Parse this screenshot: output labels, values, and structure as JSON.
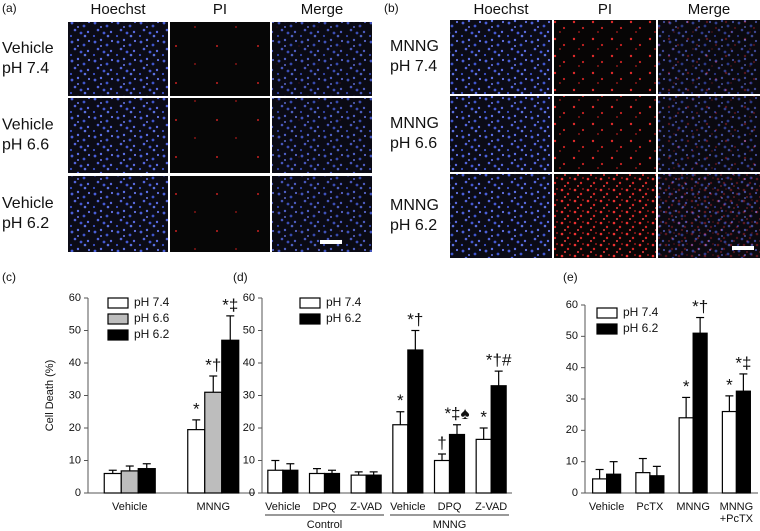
{
  "image_panels": [
    {
      "label": "(a)",
      "columns": [
        "Hoechst",
        "PI",
        "Merge"
      ],
      "rows": [
        {
          "treatment": "Vehicle",
          "ph": "pH 7.4"
        },
        {
          "treatment": "Vehicle",
          "ph": "pH 6.6"
        },
        {
          "treatment": "Vehicle",
          "ph": "pH 6.2"
        }
      ]
    },
    {
      "label": "(b)",
      "columns": [
        "Hoechst",
        "PI",
        "Merge"
      ],
      "rows": [
        {
          "treatment": "MNNG",
          "ph": "pH 7.4"
        },
        {
          "treatment": "MNNG",
          "ph": "pH 6.6"
        },
        {
          "treatment": "MNNG",
          "ph": "pH 6.2"
        }
      ]
    }
  ],
  "chart_data": [
    {
      "type": "bar",
      "label": "(c)",
      "ylabel": "Cell Death (%)",
      "categories": [
        "Vehicle",
        "MNNG"
      ],
      "series": [
        {
          "name": "pH 7.4",
          "color": "#ffffff",
          "values": [
            6,
            19.5
          ],
          "errors": [
            1,
            3
          ],
          "annotations": [
            null,
            "*"
          ]
        },
        {
          "name": "pH 6.6",
          "color": "#bdbdbd",
          "values": [
            6.8,
            31
          ],
          "errors": [
            1.5,
            5
          ],
          "annotations": [
            null,
            "*†"
          ]
        },
        {
          "name": "pH 6.2",
          "color": "#000000",
          "values": [
            7.5,
            47
          ],
          "errors": [
            1.5,
            7.5
          ],
          "annotations": [
            null,
            "*‡"
          ]
        }
      ],
      "ylim": [
        0,
        60
      ],
      "yticks": [
        0,
        10,
        20,
        30,
        40,
        50,
        60
      ]
    },
    {
      "type": "bar",
      "label": "(d)",
      "categories": [
        "Vehicle",
        "DPQ",
        "Z-VAD",
        "Vehicle",
        "DPQ",
        "Z-VAD"
      ],
      "group_labels": [
        "Control",
        "MNNG"
      ],
      "series": [
        {
          "name": "pH 7.4",
          "color": "#ffffff",
          "values": [
            7,
            6,
            5.5,
            21,
            10,
            16.5
          ],
          "errors": [
            3,
            1.5,
            1,
            4,
            2,
            3.5
          ],
          "annotations": [
            null,
            null,
            null,
            "*",
            "†",
            "*"
          ]
        },
        {
          "name": "pH 6.2",
          "color": "#000000",
          "values": [
            7,
            6,
            5.5,
            44,
            18,
            33
          ],
          "errors": [
            2,
            1,
            1,
            6,
            3,
            4.5
          ],
          "annotations": [
            null,
            null,
            null,
            "*†",
            "*‡♠",
            "*†#"
          ]
        }
      ],
      "ylim": [
        0,
        60
      ],
      "yticks": [
        0,
        10,
        20,
        30,
        40,
        50,
        60
      ]
    },
    {
      "type": "bar",
      "label": "(e)",
      "categories": [
        "Vehicle",
        "PcTX",
        "MNNG",
        "MNNG +PcTX"
      ],
      "series": [
        {
          "name": "pH 7.4",
          "color": "#ffffff",
          "values": [
            4.5,
            6.5,
            24,
            26
          ],
          "errors": [
            3,
            4.5,
            6.5,
            5
          ],
          "annotations": [
            null,
            null,
            "*",
            "*"
          ]
        },
        {
          "name": "pH 6.2",
          "color": "#000000",
          "values": [
            6,
            5.5,
            51,
            32.5
          ],
          "errors": [
            4,
            3,
            5,
            5.5
          ],
          "annotations": [
            null,
            null,
            "*†",
            "*‡"
          ]
        }
      ],
      "ylim": [
        0,
        60
      ],
      "yticks": [
        0,
        10,
        20,
        30,
        40,
        50,
        60
      ]
    }
  ]
}
